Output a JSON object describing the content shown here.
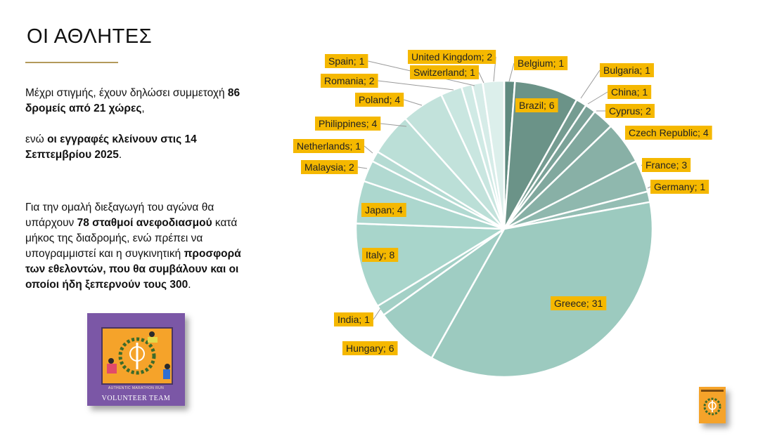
{
  "slide": {
    "title": "ΟΙ ΑΘΛΗΤΕΣ",
    "p1_text": "Μέχρι στιγμής, έχουν δηλώσει συμμετοχή",
    "p1_bold": "86 δρομείς από 21 χώρες",
    "p1_tail": ",",
    "p2_text": "ενώ",
    "p2_bold": "οι εγγραφές κλείνουν στις 14 Σεπτεμβρίου 2025",
    "p2_tail": ".",
    "p3_text1": "Για την ομαλή διεξαγωγή του αγώνα θα υπάρχουν",
    "p3_bold1": "78 σταθμοί ανεφοδιασμού",
    "p3_text2": "κατά μήκος της διαδρομής, ενώ πρέπει να υπογραμμιστεί και η συγκινητική",
    "p3_bold2": "προσφορά των εθελοντών, που θα συμβάλουν και οι οποίοι ήδη ξεπερνούν τους 300",
    "p3_tail": "."
  },
  "volunteer_card": {
    "caption_small": "AUTHENTIC MARATHON RUN",
    "caption": "VOLUNTEER TEAM",
    "icon": "volunteer-team-logo"
  },
  "corner_logo": {
    "icon": "race-logo"
  },
  "colors": {
    "label_bg": "#f5b800",
    "accent_rule": "#b39a5b",
    "card_bg": "#7b57a6"
  },
  "chart_data": {
    "type": "pie",
    "title": "",
    "start_angle_deg": 0,
    "direction": "clockwise",
    "slices": [
      {
        "label": "Belgium",
        "value": 1,
        "color": "#5f8a7f"
      },
      {
        "label": "Brazil",
        "value": 6,
        "color": "#6b9388"
      },
      {
        "label": "Bulgaria",
        "value": 1,
        "color": "#759c91"
      },
      {
        "label": "China",
        "value": 1,
        "color": "#7ba298"
      },
      {
        "label": "Cyprus",
        "value": 2,
        "color": "#81a89e"
      },
      {
        "label": "Czech Republic",
        "value": 4,
        "color": "#88b0a6"
      },
      {
        "label": "France",
        "value": 3,
        "color": "#8fb8ae"
      },
      {
        "label": "Germany",
        "value": 1,
        "color": "#94bdb3"
      },
      {
        "label": "Greece",
        "value": 31,
        "color": "#9ccabf"
      },
      {
        "label": "Hungary",
        "value": 6,
        "color": "#9fcdc3"
      },
      {
        "label": "India",
        "value": 1,
        "color": "#a3d0c6"
      },
      {
        "label": "Italy",
        "value": 8,
        "color": "#a8d5cb"
      },
      {
        "label": "Japan",
        "value": 4,
        "color": "#acd7ce"
      },
      {
        "label": "Malaysia",
        "value": 2,
        "color": "#b1d9d1"
      },
      {
        "label": "Netherlands",
        "value": 1,
        "color": "#b5dbd3"
      },
      {
        "label": "Philippines",
        "value": 4,
        "color": "#bbdfd7"
      },
      {
        "label": "Poland",
        "value": 4,
        "color": "#c2e2db"
      },
      {
        "label": "Romania",
        "value": 2,
        "color": "#c9e6e0"
      },
      {
        "label": "Spain",
        "value": 1,
        "color": "#d0eae5"
      },
      {
        "label": "Switzerland",
        "value": 1,
        "color": "#d6ece8"
      },
      {
        "label": "United Kingdom",
        "value": 2,
        "color": "#dcefeb"
      }
    ],
    "data_label_format": "{label}; {value}",
    "legend": "none"
  }
}
